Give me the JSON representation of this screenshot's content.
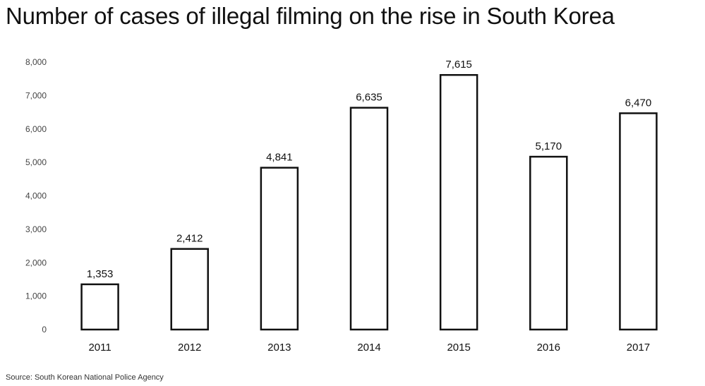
{
  "chart_data": {
    "type": "bar",
    "title": "Number of cases of illegal filming on the rise in South Korea",
    "source": "Source: South Korean National Police Agency",
    "categories": [
      "2011",
      "2012",
      "2013",
      "2014",
      "2015",
      "2016",
      "2017"
    ],
    "values": [
      1353,
      2412,
      4841,
      6635,
      7615,
      5170,
      6470
    ],
    "value_labels": [
      "1,353",
      "2,412",
      "4,841",
      "6,635",
      "7,615",
      "5,170",
      "6,470"
    ],
    "ylim": [
      0,
      8000
    ],
    "yticks": [
      0,
      1000,
      2000,
      3000,
      4000,
      5000,
      6000,
      7000,
      8000
    ],
    "ytick_labels": [
      "0",
      "1,000",
      "2,000",
      "3,000",
      "4,000",
      "5,000",
      "6,000",
      "7,000",
      "8,000"
    ],
    "xlabel": "",
    "ylabel": "",
    "grid": false,
    "legend": "none",
    "colors": {
      "bar_fill": "#ffffff",
      "bar_stroke": "#111111",
      "text": "#111111"
    }
  }
}
